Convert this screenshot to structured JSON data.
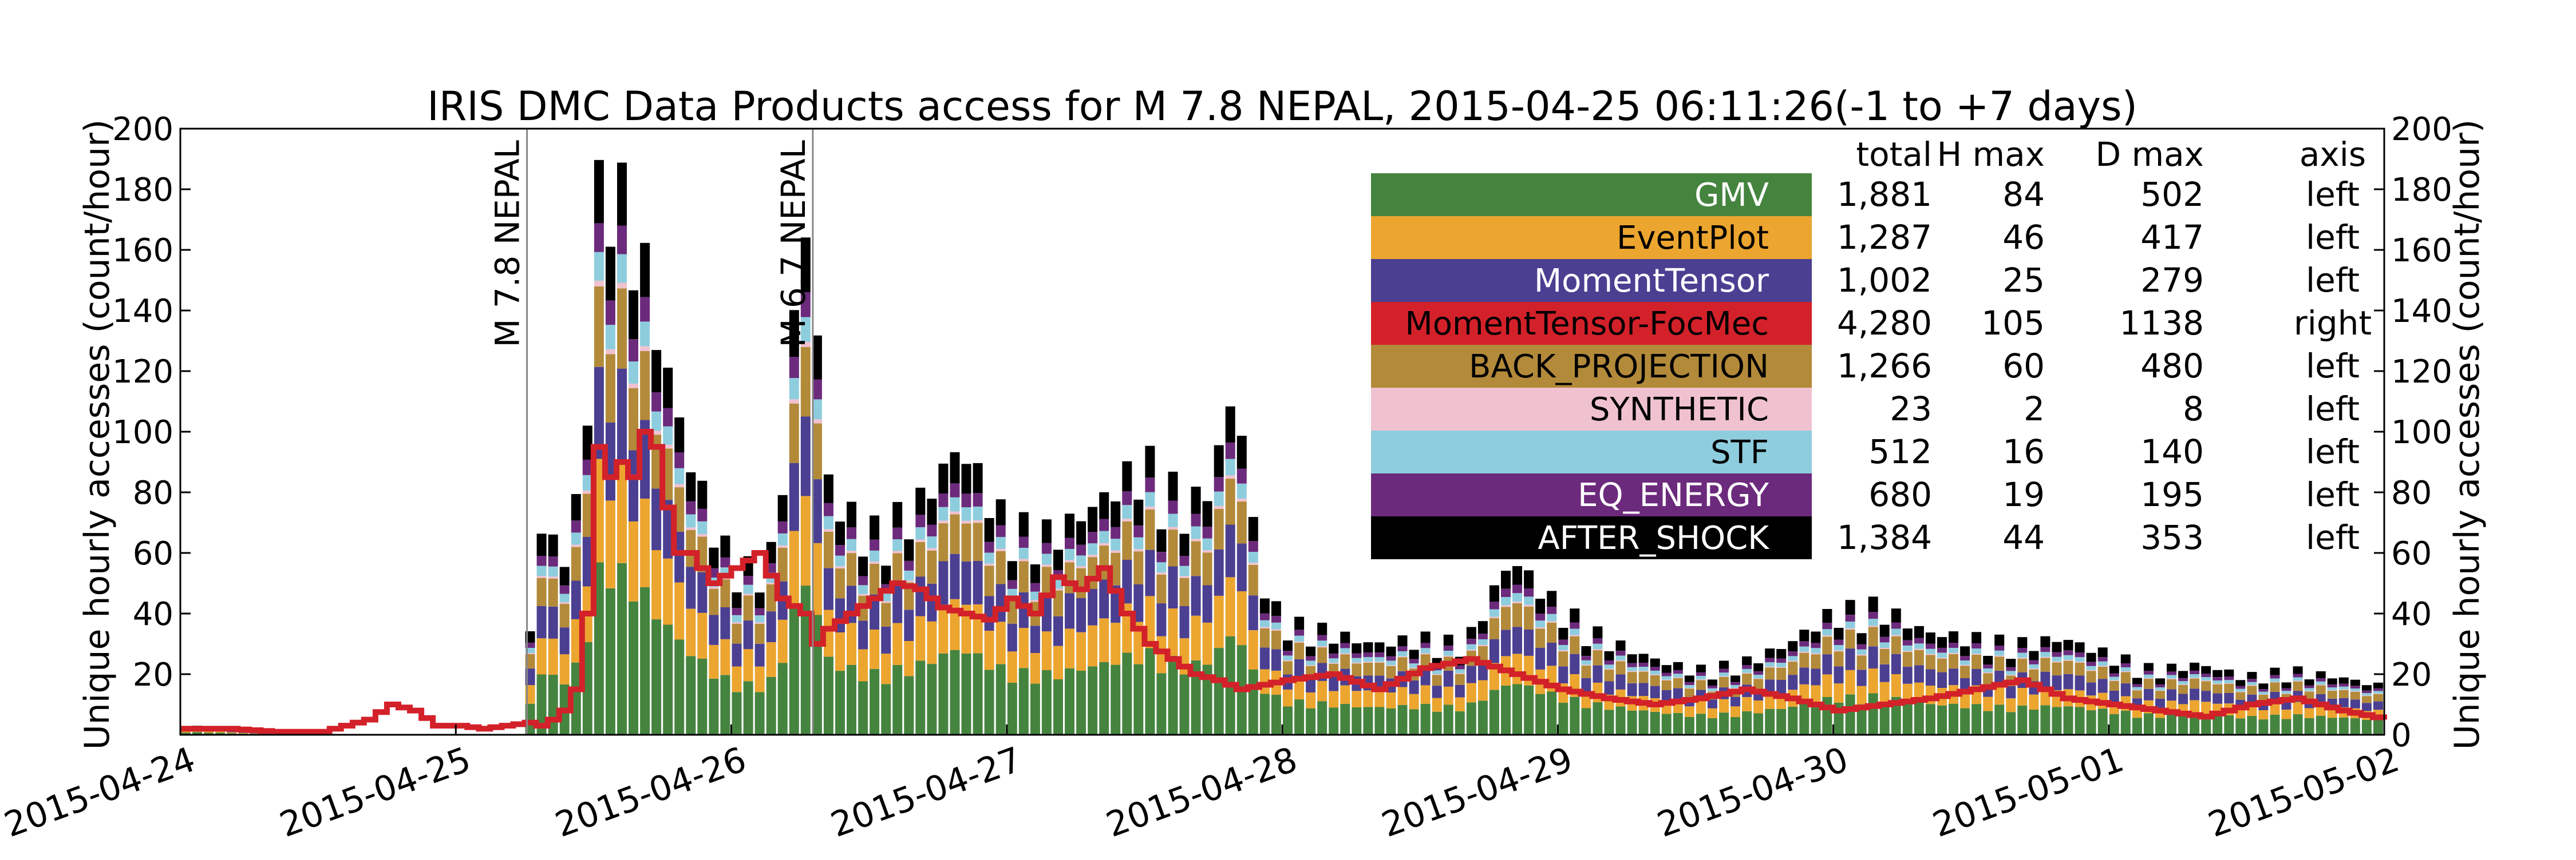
{
  "chart_data": {
    "type": "bar",
    "title": "IRIS DMC Data Products access for M 7.8 NEPAL, 2015-04-25 06:11:26(-1 to +7 days)",
    "ylabel_left": "Unique hourly accesses (count/hour)",
    "ylabel_right": "Unique hourly accesses (count/hour)",
    "ylim_left": [
      0,
      200
    ],
    "ylim_right": [
      0,
      200
    ],
    "yticks_left": [
      "20",
      "40",
      "60",
      "80",
      "100",
      "120",
      "140",
      "160",
      "180",
      "200"
    ],
    "yticks_right": [
      "0",
      "20",
      "40",
      "60",
      "80",
      "100",
      "120",
      "140",
      "160",
      "180",
      "200"
    ],
    "x_ticks": [
      "2015-04-24",
      "2015-04-25",
      "2015-04-26",
      "2015-04-27",
      "2015-04-28",
      "2015-04-29",
      "2015-04-30",
      "2015-05-01",
      "2015-05-02"
    ],
    "x_range_hours": [
      0,
      192
    ],
    "grid": false,
    "events": [
      {
        "label": "M 7.8 NEPAL",
        "hour": 30.2
      },
      {
        "label": "M 6.7 NEPAL",
        "hour": 55.1
      }
    ],
    "legend_headers": [
      "total",
      "H max",
      "D max",
      "axis"
    ],
    "series": [
      {
        "name": "GMV",
        "color": "#45843f",
        "text_color": "#ffffff",
        "total": "1,881",
        "hmax": "84",
        "dmax": "502",
        "axis": "left"
      },
      {
        "name": "EventPlot",
        "color": "#eca52f",
        "text_color": "#000000",
        "total": "1,287",
        "hmax": "46",
        "dmax": "417",
        "axis": "left"
      },
      {
        "name": "MomentTensor",
        "color": "#4b3f92",
        "text_color": "#ffffff",
        "total": "1,002",
        "hmax": "25",
        "dmax": "279",
        "axis": "left"
      },
      {
        "name": "MomentTensor-FocMec",
        "color": "#d3212a",
        "text_color": "#000000",
        "total": "4,280",
        "hmax": "105",
        "dmax": "1138",
        "axis": "right"
      },
      {
        "name": "BACK_PROJECTION",
        "color": "#b38a3a",
        "text_color": "#000000",
        "total": "1,266",
        "hmax": "60",
        "dmax": "480",
        "axis": "left"
      },
      {
        "name": "SYNTHETIC",
        "color": "#f0c2d0",
        "text_color": "#000000",
        "total": "23",
        "hmax": "2",
        "dmax": "8",
        "axis": "left"
      },
      {
        "name": "STF",
        "color": "#8ecddd",
        "text_color": "#000000",
        "total": "512",
        "hmax": "16",
        "dmax": "140",
        "axis": "left"
      },
      {
        "name": "EQ_ENERGY",
        "color": "#6c2a7c",
        "text_color": "#ffffff",
        "total": "680",
        "hmax": "19",
        "dmax": "195",
        "axis": "left"
      },
      {
        "name": "AFTER_SHOCK",
        "color": "#000000",
        "text_color": "#ffffff",
        "total": "1,384",
        "hmax": "44",
        "dmax": "353",
        "axis": "left"
      }
    ],
    "stacked_keyframes": {
      "description_hours": [
        0,
        4,
        8,
        12,
        16,
        20,
        24,
        28,
        30,
        31,
        32,
        33,
        34,
        35,
        36,
        37,
        38,
        39,
        40,
        41,
        42,
        43,
        44,
        45,
        46,
        47,
        48,
        50,
        52,
        54,
        55,
        56,
        57,
        58,
        60,
        64,
        68,
        72,
        76,
        80,
        84,
        88,
        90,
        92,
        94,
        96,
        100,
        104,
        108,
        112,
        116,
        120,
        124,
        128,
        132,
        136,
        140,
        144,
        148,
        152,
        156,
        160,
        164,
        168,
        172,
        176,
        180,
        184,
        188,
        192
      ],
      "total_height": [
        3,
        2,
        0,
        0,
        0,
        0,
        0,
        0,
        0,
        65,
        62,
        58,
        55,
        85,
        140,
        190,
        180,
        150,
        160,
        130,
        120,
        105,
        90,
        80,
        70,
        60,
        55,
        50,
        58,
        150,
        165,
        85,
        72,
        70,
        62,
        70,
        90,
        65,
        62,
        72,
        85,
        70,
        80,
        110,
        50,
        35,
        32,
        28,
        30,
        28,
        55,
        40,
        30,
        24,
        20,
        22,
        28,
        38,
        40,
        32,
        30,
        28,
        30,
        25,
        20,
        22,
        18,
        20,
        18,
        15
      ],
      "fraction": {
        "GMV": 0.3,
        "EventPlot": 0.18,
        "MomentTensor": 0.16,
        "BACK_PROJECTION": 0.14,
        "SYNTHETIC": 0.01,
        "STF": 0.05,
        "EQ_ENERGY": 0.05,
        "AFTER_SHOCK": 0.11
      }
    },
    "line_series": {
      "name": "MomentTensor-FocMec",
      "axis": "right",
      "hours": [
        0,
        4,
        8,
        12,
        16,
        18,
        20,
        22,
        24,
        26,
        28,
        30,
        31,
        32,
        33,
        34,
        35,
        36,
        37,
        38,
        39,
        40,
        41,
        42,
        43,
        44,
        45,
        46,
        48,
        50,
        52,
        54,
        55,
        56,
        58,
        60,
        62,
        64,
        66,
        68,
        70,
        72,
        74,
        76,
        78,
        80,
        82,
        84,
        86,
        88,
        90,
        92,
        96,
        100,
        104,
        108,
        112,
        116,
        120,
        124,
        128,
        132,
        136,
        140,
        144,
        148,
        152,
        156,
        160,
        164,
        168,
        172,
        176,
        180,
        184,
        188,
        192
      ],
      "values": [
        2,
        2,
        1,
        1,
        5,
        10,
        8,
        3,
        3,
        2,
        3,
        4,
        3,
        5,
        8,
        15,
        40,
        95,
        85,
        90,
        85,
        100,
        95,
        75,
        60,
        60,
        55,
        50,
        55,
        60,
        45,
        40,
        30,
        35,
        40,
        45,
        50,
        48,
        42,
        40,
        38,
        45,
        40,
        52,
        48,
        55,
        40,
        30,
        25,
        20,
        18,
        15,
        18,
        20,
        15,
        22,
        25,
        20,
        15,
        12,
        10,
        12,
        15,
        12,
        8,
        10,
        12,
        15,
        18,
        12,
        10,
        8,
        6,
        10,
        12,
        8,
        5
      ]
    }
  }
}
